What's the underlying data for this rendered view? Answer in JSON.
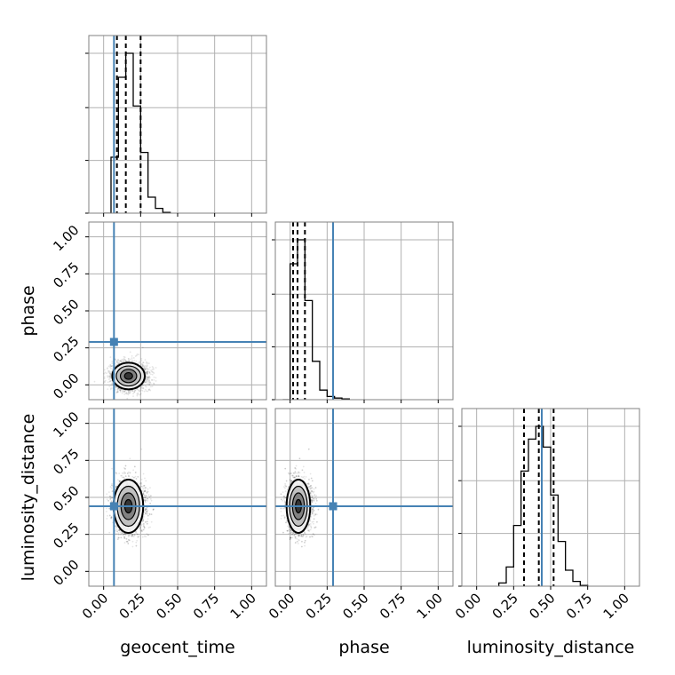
{
  "chart_data": {
    "type": "corner",
    "parameters": [
      "geocent_time",
      "phase",
      "luminosity_distance"
    ],
    "axis_range": [
      -0.1,
      1.1
    ],
    "tick_labels": [
      "0.00",
      "0.25",
      "0.50",
      "0.75",
      "1.00"
    ],
    "tick_values": [
      0,
      0.25,
      0.5,
      0.75,
      1.0
    ],
    "grid": true,
    "truths": {
      "geocent_time": 0.07,
      "phase": 0.29,
      "luminosity_distance": 0.44
    },
    "colors": {
      "truth": "#4682b4",
      "hist": "#000000",
      "grid": "#b0b0b0"
    },
    "marginals": {
      "geocent_time": {
        "bin_edges": [
          0.0,
          0.05,
          0.1,
          0.15,
          0.2,
          0.25,
          0.3,
          0.35,
          0.4,
          0.45
        ],
        "counts": [
          0.0,
          0.35,
          0.85,
          1.0,
          0.67,
          0.38,
          0.1,
          0.03,
          0.005
        ],
        "quantiles": [
          0.09,
          0.15,
          0.25
        ]
      },
      "phase": {
        "bin_edges": [
          -0.05,
          0.0,
          0.05,
          0.1,
          0.15,
          0.2,
          0.25,
          0.3,
          0.35,
          0.4
        ],
        "counts": [
          0.0,
          0.85,
          1.0,
          0.62,
          0.24,
          0.06,
          0.02,
          0.01,
          0.005
        ],
        "quantiles": [
          0.02,
          0.05,
          0.1
        ]
      },
      "luminosity_distance": {
        "bin_edges": [
          0.15,
          0.2,
          0.25,
          0.3,
          0.35,
          0.4,
          0.45,
          0.5,
          0.55,
          0.6,
          0.65,
          0.7,
          0.75
        ],
        "counts": [
          0.02,
          0.12,
          0.38,
          0.72,
          0.92,
          1.0,
          0.87,
          0.57,
          0.28,
          0.1,
          0.03,
          0.005
        ],
        "quantiles": [
          0.32,
          0.42,
          0.52
        ]
      }
    },
    "joint": [
      {
        "x": "geocent_time",
        "y": "phase",
        "center": [
          0.16,
          0.06
        ],
        "spread": [
          0.055,
          0.045
        ]
      },
      {
        "x": "geocent_time",
        "y": "luminosity_distance",
        "center": [
          0.16,
          0.44
        ],
        "spread": [
          0.05,
          0.09
        ]
      },
      {
        "x": "phase",
        "y": "luminosity_distance",
        "center": [
          0.05,
          0.44
        ],
        "spread": [
          0.04,
          0.09
        ]
      }
    ]
  }
}
